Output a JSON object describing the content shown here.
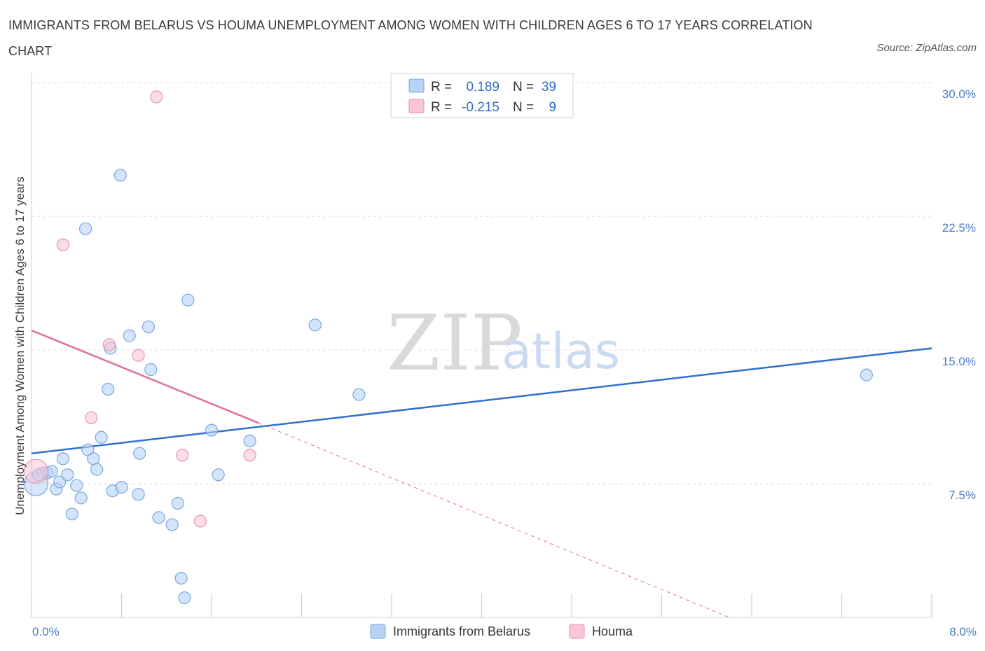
{
  "title": "IMMIGRANTS FROM BELARUS VS HOUMA UNEMPLOYMENT AMONG WOMEN WITH CHILDREN AGES 6 TO 17 YEARS CORRELATION CHART",
  "source": "Source: ZipAtlas.com",
  "watermark": {
    "zip": "ZIP",
    "atlas": "atlas"
  },
  "legend": {
    "rows": [
      {
        "r_label": "R =",
        "r_value": "0.189",
        "n_label": "N =",
        "n_value": "39"
      },
      {
        "r_label": "R =",
        "r_value": "-0.215",
        "n_label": "N =",
        "n_value": "9"
      }
    ]
  },
  "colors": {
    "belarus_fill": "#b7d2f5",
    "belarus_stroke": "#7aa8e0",
    "belarus_line": "#2f6fcf",
    "houma_fill": "#f8c6d6",
    "houma_stroke": "#e893ae",
    "houma_line": "#e06d97",
    "grid": "#dcdcdc",
    "tick_text": "#4a7cc4"
  },
  "chart_data": {
    "type": "scatter",
    "title": "IMMIGRANTS FROM BELARUS VS HOUMA UNEMPLOYMENT AMONG WOMEN WITH CHILDREN AGES 6 TO 17 YEARS CORRELATION CHART",
    "xlabel": "",
    "ylabel": "Unemployment Among Women with Children Ages 6 to 17 years",
    "xlim": [
      0,
      8
    ],
    "ylim": [
      0,
      30
    ],
    "x_tick_labels": [
      "0.0%",
      "8.0%"
    ],
    "y_ticks": [
      7.5,
      15.0,
      22.5,
      30.0
    ],
    "y_tick_labels": [
      "7.5%",
      "15.0%",
      "22.5%",
      "30.0%"
    ],
    "series": [
      {
        "name": "Immigrants from Belarus",
        "r": 0.189,
        "n": 39,
        "trend": {
          "x": [
            0,
            8
          ],
          "y": [
            9.2,
            15.1
          ]
        },
        "points": [
          {
            "x": 0.04,
            "y": 7.5,
            "big": true
          },
          {
            "x": 0.1,
            "y": 8.1
          },
          {
            "x": 0.14,
            "y": 8.1
          },
          {
            "x": 0.18,
            "y": 8.2
          },
          {
            "x": 0.22,
            "y": 7.2
          },
          {
            "x": 0.25,
            "y": 7.6
          },
          {
            "x": 0.28,
            "y": 8.9
          },
          {
            "x": 0.32,
            "y": 8.0
          },
          {
            "x": 0.36,
            "y": 5.8
          },
          {
            "x": 0.4,
            "y": 7.4
          },
          {
            "x": 0.44,
            "y": 6.7
          },
          {
            "x": 0.5,
            "y": 9.4
          },
          {
            "x": 0.55,
            "y": 8.9
          },
          {
            "x": 0.58,
            "y": 8.3
          },
          {
            "x": 0.62,
            "y": 10.1
          },
          {
            "x": 0.68,
            "y": 12.8
          },
          {
            "x": 0.7,
            "y": 15.1
          },
          {
            "x": 0.72,
            "y": 7.1
          },
          {
            "x": 0.8,
            "y": 7.3
          },
          {
            "x": 0.87,
            "y": 15.8
          },
          {
            "x": 0.95,
            "y": 6.9
          },
          {
            "x": 0.96,
            "y": 9.2
          },
          {
            "x": 1.04,
            "y": 16.3
          },
          {
            "x": 1.06,
            "y": 13.9
          },
          {
            "x": 1.13,
            "y": 5.6
          },
          {
            "x": 1.25,
            "y": 5.2
          },
          {
            "x": 1.3,
            "y": 6.4
          },
          {
            "x": 1.33,
            "y": 2.2
          },
          {
            "x": 1.36,
            "y": 1.1
          },
          {
            "x": 1.39,
            "y": 17.8
          },
          {
            "x": 1.6,
            "y": 10.5
          },
          {
            "x": 1.66,
            "y": 8.0
          },
          {
            "x": 1.94,
            "y": 9.9
          },
          {
            "x": 2.52,
            "y": 16.4
          },
          {
            "x": 2.91,
            "y": 12.5
          },
          {
            "x": 0.79,
            "y": 24.8
          },
          {
            "x": 0.48,
            "y": 21.8
          },
          {
            "x": 7.42,
            "y": 13.6
          },
          {
            "x": 0.06,
            "y": 8.0
          }
        ]
      },
      {
        "name": "Houma",
        "r": -0.215,
        "n": 9,
        "trend": {
          "x": [
            0,
            2.02
          ],
          "y": [
            16.1,
            10.9
          ],
          "dashed_extension": {
            "x": [
              2.02,
              6.2
            ],
            "y": [
              10.9,
              0
            ]
          }
        },
        "points": [
          {
            "x": 0.04,
            "y": 8.2,
            "big": true
          },
          {
            "x": 0.28,
            "y": 20.9
          },
          {
            "x": 0.53,
            "y": 11.2
          },
          {
            "x": 0.69,
            "y": 15.3
          },
          {
            "x": 0.95,
            "y": 14.7
          },
          {
            "x": 1.11,
            "y": 29.2
          },
          {
            "x": 1.34,
            "y": 9.1
          },
          {
            "x": 1.5,
            "y": 5.4
          },
          {
            "x": 1.94,
            "y": 9.1
          }
        ]
      }
    ],
    "legend_entries": [
      "Immigrants from Belarus",
      "Houma"
    ]
  }
}
